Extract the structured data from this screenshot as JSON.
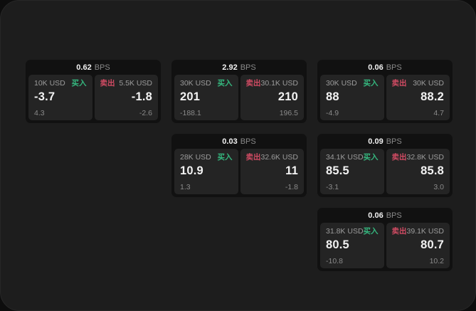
{
  "theme": {
    "backdrop": "#0d0d0d",
    "window_bg": "#1d1d1d",
    "card_bg": "#111111",
    "panel_bg": "#242424",
    "text_primary": "#f2f2f2",
    "text_secondary": "#9c9c9c",
    "buy_color": "#35b87f",
    "sell_color": "#d14b63"
  },
  "labels": {
    "bps_unit": "BPS",
    "buy": "买入",
    "sell": "卖出"
  },
  "cards": [
    {
      "bps": "0.62",
      "buy": {
        "size": "10K USD",
        "price": "-3.7",
        "delta": "4.3"
      },
      "sell": {
        "size": "5.5K USD",
        "price": "-1.8",
        "delta": "-2.6"
      }
    },
    {
      "bps": "2.92",
      "buy": {
        "size": "30K USD",
        "price": "201",
        "delta": "-188.1"
      },
      "sell": {
        "size": "30.1K USD",
        "price": "210",
        "delta": "196.5"
      }
    },
    {
      "bps": "0.06",
      "buy": {
        "size": "30K USD",
        "price": "88",
        "delta": "-4.9"
      },
      "sell": {
        "size": "30K USD",
        "price": "88.2",
        "delta": "4.7"
      }
    },
    {
      "bps": "0.03",
      "buy": {
        "size": "28K USD",
        "price": "10.9",
        "delta": "1.3"
      },
      "sell": {
        "size": "32.6K USD",
        "price": "11",
        "delta": "-1.8"
      }
    },
    {
      "bps": "0.09",
      "buy": {
        "size": "34.1K USD",
        "price": "85.5",
        "delta": "-3.1"
      },
      "sell": {
        "size": "32.8K USD",
        "price": "85.8",
        "delta": "3.0"
      }
    },
    {
      "bps": "0.06",
      "buy": {
        "size": "31.8K USD",
        "price": "80.5",
        "delta": "-10.8"
      },
      "sell": {
        "size": "39.1K USD",
        "price": "80.7",
        "delta": "10.2"
      }
    }
  ]
}
